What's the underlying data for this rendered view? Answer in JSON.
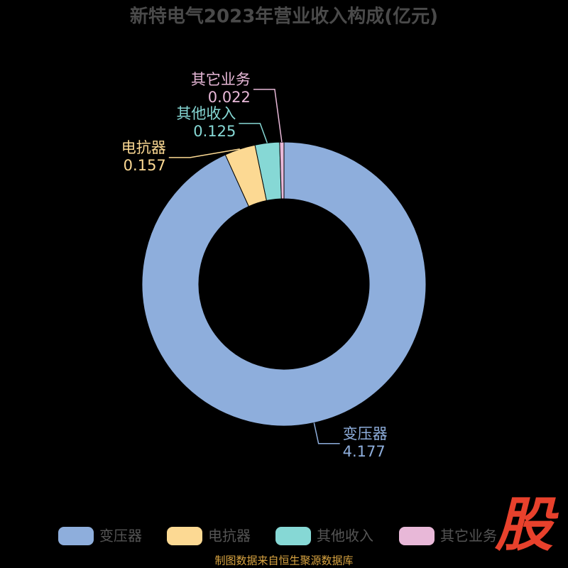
{
  "chart_data": {
    "type": "donut",
    "title": "新特电气2023年营业收入构成(亿元)",
    "categories": [
      "变压器",
      "电抗器",
      "其他收入",
      "其它业务"
    ],
    "values": [
      4.177,
      0.157,
      0.125,
      0.022
    ],
    "colors": [
      "#8eaedc",
      "#fcd993",
      "#86d8d5",
      "#e8b8d8"
    ],
    "source": "制图数据来自恒生聚源数据库",
    "watermark": "股"
  }
}
